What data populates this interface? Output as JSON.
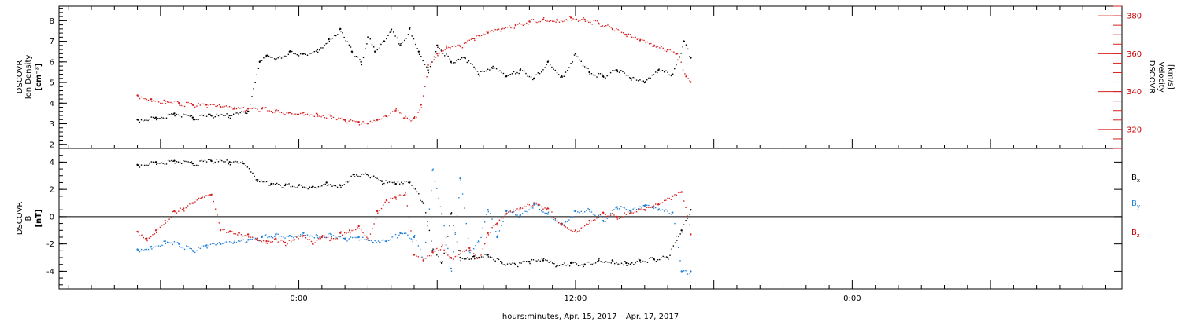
{
  "colors": {
    "black": "#000000",
    "red": "#d62020",
    "blue": "#1f7fd8"
  },
  "chart_data": [
    {
      "type": "scatter",
      "panel": "plasma",
      "ylabel": [
        "DSCOVR",
        "Ion Density",
        "[cm⁻³]"
      ],
      "y2label": [
        "DSCOVR",
        "Velocity",
        "[km/s]"
      ],
      "ylim": [
        1.8,
        8.7
      ],
      "y2lim": [
        310,
        385
      ],
      "yticks": [
        "2",
        "3",
        "4",
        "5",
        "6",
        "7",
        "8"
      ],
      "y2ticks": [
        "320",
        "340",
        "360",
        "380"
      ],
      "grid": false,
      "series": [
        {
          "axis": "left",
          "color": "black",
          "x": [
            -7.0,
            -6.2,
            -5.4,
            -4.6,
            -3.8,
            -3.0,
            -2.2,
            -1.7,
            -1.4,
            -1.0,
            -0.4,
            0.2,
            0.8,
            1.3,
            1.8,
            2.3,
            2.7,
            3.0,
            3.3,
            3.7,
            4.0,
            4.4,
            4.8,
            5.2,
            5.6,
            6.0,
            6.6,
            7.2,
            7.8,
            8.4,
            9.0,
            9.6,
            10.2,
            10.8,
            11.4,
            12.0,
            12.6,
            13.2,
            13.8,
            14.4,
            15.0,
            15.6,
            16.2,
            16.7,
            17.0
          ],
          "y": [
            3.2,
            3.3,
            3.5,
            3.3,
            3.4,
            3.4,
            3.6,
            6.0,
            6.3,
            6.1,
            6.5,
            6.4,
            6.6,
            7.1,
            7.6,
            6.5,
            6.0,
            7.2,
            6.5,
            7.0,
            7.5,
            6.8,
            7.6,
            6.5,
            5.6,
            6.8,
            6.0,
            6.2,
            5.4,
            5.7,
            5.3,
            5.6,
            5.2,
            6.0,
            5.3,
            6.4,
            5.5,
            5.3,
            5.6,
            5.2,
            5.0,
            5.6,
            5.4,
            7.0,
            6.2
          ]
        },
        {
          "axis": "right",
          "color": "red",
          "x": [
            -7.0,
            -6.4,
            -5.8,
            -5.2,
            -4.6,
            -4.0,
            -3.4,
            -2.8,
            -2.2,
            -1.6,
            -1.0,
            -0.4,
            0.2,
            0.8,
            1.4,
            2.0,
            2.6,
            3.0,
            3.4,
            3.8,
            4.2,
            4.6,
            5.0,
            5.3,
            5.6,
            6.0,
            6.4,
            7.0,
            7.6,
            8.2,
            8.8,
            9.4,
            10.0,
            10.6,
            11.2,
            11.8,
            12.4,
            13.0,
            13.6,
            14.2,
            14.8,
            15.4,
            16.0,
            16.4,
            16.8,
            17.0
          ],
          "y": [
            338,
            336,
            335,
            334,
            333,
            333,
            332,
            331,
            331,
            331,
            330,
            329,
            329,
            328,
            327,
            325,
            324,
            323,
            325,
            327,
            330,
            326,
            326,
            333,
            354,
            360,
            364,
            364,
            368,
            371,
            373,
            375,
            377,
            378,
            378,
            379,
            378,
            376,
            373,
            370,
            367,
            364,
            362,
            360,
            348,
            345
          ]
        }
      ]
    },
    {
      "type": "scatter",
      "panel": "magnetic",
      "ylabel": [
        "DSCOVR",
        "B",
        "[nT]"
      ],
      "ylim": [
        -5.3,
        5.0
      ],
      "yticks": [
        "-4",
        "-2",
        "0",
        "2",
        "4"
      ],
      "zero_line": true,
      "grid": false,
      "legend_position": "right",
      "series": [
        {
          "name": "B",
          "subscript": "x",
          "color": "black",
          "x": [
            -7.0,
            -6.2,
            -5.4,
            -4.6,
            -3.8,
            -3.0,
            -2.4,
            -1.8,
            -1.2,
            -0.6,
            0.0,
            0.6,
            1.2,
            1.8,
            2.4,
            3.0,
            3.6,
            4.2,
            4.8,
            5.4,
            5.8,
            6.2,
            6.6,
            7.0,
            7.6,
            8.2,
            8.8,
            9.4,
            10.0,
            10.6,
            11.2,
            11.8,
            12.4,
            13.0,
            13.6,
            14.2,
            14.8,
            15.4,
            16.0,
            16.6,
            17.0
          ],
          "y": [
            3.8,
            4.0,
            4.1,
            3.9,
            4.1,
            4.0,
            3.9,
            2.6,
            2.4,
            2.3,
            2.3,
            2.2,
            2.5,
            2.3,
            3.1,
            3.1,
            2.6,
            2.4,
            2.5,
            1.0,
            -2.5,
            -3.4,
            0.2,
            -3.0,
            -2.9,
            -2.8,
            -3.4,
            -3.5,
            -3.3,
            -3.2,
            -3.6,
            -3.4,
            -3.5,
            -3.2,
            -3.2,
            -3.4,
            -3.2,
            -3.1,
            -3.0,
            -1.0,
            0.5
          ]
        },
        {
          "name": "B",
          "subscript": "y",
          "color": "blue",
          "x": [
            -7.0,
            -6.4,
            -5.8,
            -5.2,
            -4.6,
            -4.0,
            -3.4,
            -2.8,
            -2.2,
            -1.6,
            -1.0,
            -0.4,
            0.2,
            0.8,
            1.4,
            2.0,
            2.6,
            3.2,
            3.8,
            4.4,
            5.0,
            5.4,
            5.8,
            6.2,
            6.6,
            7.0,
            7.4,
            7.8,
            8.2,
            8.6,
            9.0,
            9.6,
            10.2,
            10.8,
            11.4,
            12.0,
            12.6,
            13.2,
            13.8,
            14.4,
            15.0,
            15.6,
            16.2,
            16.6,
            17.0
          ],
          "y": [
            -2.4,
            -2.2,
            -1.8,
            -2.0,
            -2.5,
            -2.1,
            -2.0,
            -1.9,
            -1.7,
            -1.5,
            -1.3,
            -1.4,
            -1.2,
            -1.4,
            -1.3,
            -1.6,
            -1.5,
            -1.9,
            -1.8,
            -1.2,
            -1.5,
            -3.2,
            3.4,
            0.2,
            -3.8,
            2.8,
            -2.5,
            -1.8,
            0.5,
            -1.5,
            0.4,
            0.1,
            0.9,
            0.2,
            -0.5,
            0.4,
            0.5,
            -0.3,
            0.7,
            0.4,
            0.8,
            0.5,
            0.3,
            -4.0,
            -4.0
          ]
        },
        {
          "name": "B",
          "subscript": "z",
          "color": "red",
          "x": [
            -7.0,
            -6.6,
            -6.2,
            -5.8,
            -5.4,
            -5.0,
            -4.6,
            -4.2,
            -3.8,
            -3.4,
            -3.0,
            -2.6,
            -2.2,
            -1.8,
            -1.4,
            -1.0,
            -0.6,
            -0.2,
            0.2,
            0.6,
            1.0,
            1.4,
            1.8,
            2.2,
            2.6,
            3.0,
            3.4,
            3.8,
            4.2,
            4.6,
            5.0,
            5.4,
            5.8,
            6.2,
            6.6,
            7.0,
            7.4,
            7.8,
            8.2,
            8.6,
            9.0,
            9.6,
            10.2,
            10.8,
            11.4,
            12.0,
            12.6,
            13.2,
            13.8,
            14.4,
            15.0,
            15.6,
            16.2,
            16.6,
            17.0
          ],
          "y": [
            -1.1,
            -1.6,
            -1.0,
            -0.3,
            0.4,
            0.6,
            1.0,
            1.4,
            1.6,
            -1.0,
            -1.1,
            -1.2,
            -1.3,
            -1.6,
            -1.8,
            -1.6,
            -1.9,
            -1.7,
            -1.4,
            -2.0,
            -1.5,
            -1.7,
            -1.2,
            -1.0,
            -0.7,
            -1.6,
            0.4,
            1.2,
            1.4,
            1.6,
            -2.8,
            -3.2,
            -2.6,
            -2.2,
            -3.0,
            -2.5,
            -2.3,
            -3.0,
            -1.2,
            -0.5,
            0.2,
            0.6,
            1.0,
            0.6,
            -0.6,
            -1.0,
            -0.3,
            0.3,
            0.0,
            0.3,
            0.5,
            0.9,
            1.5,
            1.8,
            -1.3
          ]
        }
      ]
    }
  ],
  "x_axis": {
    "xlim": [
      -10.4,
      35.7
    ],
    "ticks": [
      {
        "x": 0,
        "label": "0:00"
      },
      {
        "x": 12,
        "label": "12:00"
      },
      {
        "x": 24,
        "label": "0:00"
      }
    ],
    "minor_step": 1,
    "label": "hours:minutes, Apr. 15, 2017 – Apr. 17, 2017"
  }
}
